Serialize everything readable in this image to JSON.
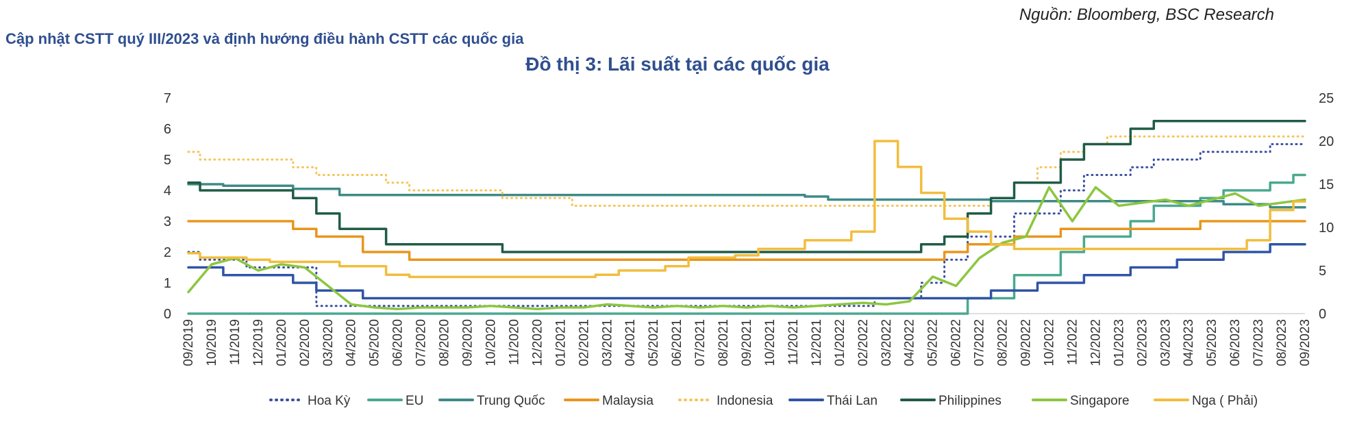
{
  "source_note": "Nguồn: Bloomberg, BSC Research",
  "section_title": "Cập nhật CSTT quý III/2023 và định hướng điều hành CSTT các quốc gia",
  "chart_title": "Đồ thị 3: Lãi suất tại các quốc gia",
  "chart_data": {
    "type": "line",
    "title": "Đồ thị 3: Lãi suất tại các quốc gia",
    "x_labels": [
      "09/2019",
      "10/2019",
      "11/2019",
      "12/2019",
      "01/2020",
      "02/2020",
      "03/2020",
      "04/2020",
      "05/2020",
      "06/2020",
      "07/2020",
      "08/2020",
      "09/2020",
      "10/2020",
      "11/2020",
      "12/2020",
      "01/2021",
      "02/2021",
      "03/2021",
      "04/2021",
      "05/2021",
      "06/2021",
      "07/2021",
      "08/2021",
      "09/2021",
      "10/2021",
      "11/2021",
      "12/2021",
      "01/2022",
      "02/2022",
      "03/2022",
      "04/2022",
      "05/2022",
      "06/2022",
      "07/2022",
      "08/2022",
      "09/2022",
      "10/2022",
      "11/2022",
      "12/2022",
      "01/2023",
      "02/2023",
      "03/2023",
      "04/2023",
      "05/2023",
      "06/2023",
      "07/2023",
      "08/2023",
      "09/2023"
    ],
    "ylim_left": [
      0,
      7
    ],
    "ylim_right": [
      0,
      25
    ],
    "y_ticks_left": [
      "0",
      "1",
      "2",
      "3",
      "4",
      "5",
      "6",
      "7"
    ],
    "y_ticks_right": [
      "0",
      "5",
      "10",
      "15",
      "20",
      "25"
    ],
    "legend_position": "bottom",
    "grid": false,
    "series": [
      {
        "name": "Hoa Kỳ",
        "color": "#3a4fa3",
        "style": "dotted",
        "axis": "left",
        "values": [
          2.0,
          1.75,
          1.75,
          1.5,
          1.5,
          1.5,
          0.25,
          0.25,
          0.25,
          0.25,
          0.25,
          0.25,
          0.25,
          0.25,
          0.25,
          0.25,
          0.25,
          0.25,
          0.25,
          0.25,
          0.25,
          0.25,
          0.25,
          0.25,
          0.25,
          0.25,
          0.25,
          0.25,
          0.25,
          0.25,
          0.5,
          0.5,
          1.0,
          1.75,
          2.5,
          2.5,
          3.25,
          3.25,
          4.0,
          4.5,
          4.5,
          4.75,
          5.0,
          5.0,
          5.25,
          5.25,
          5.25,
          5.5,
          5.5
        ]
      },
      {
        "name": "EU",
        "color": "#4aa88f",
        "style": "solid",
        "axis": "left",
        "values": [
          0,
          0,
          0,
          0,
          0,
          0,
          0,
          0,
          0,
          0,
          0,
          0,
          0,
          0,
          0,
          0,
          0,
          0,
          0,
          0,
          0,
          0,
          0,
          0,
          0,
          0,
          0,
          0,
          0,
          0,
          0,
          0,
          0,
          0,
          0.5,
          0.5,
          1.25,
          1.25,
          2.0,
          2.5,
          2.5,
          3.0,
          3.5,
          3.5,
          3.75,
          4.0,
          4.0,
          4.25,
          4.5
        ]
      },
      {
        "name": "Trung Quốc",
        "color": "#3e8a86",
        "style": "solid",
        "axis": "left",
        "values": [
          4.2,
          4.2,
          4.15,
          4.15,
          4.15,
          4.05,
          4.05,
          3.85,
          3.85,
          3.85,
          3.85,
          3.85,
          3.85,
          3.85,
          3.85,
          3.85,
          3.85,
          3.85,
          3.85,
          3.85,
          3.85,
          3.85,
          3.85,
          3.85,
          3.85,
          3.85,
          3.85,
          3.8,
          3.7,
          3.7,
          3.7,
          3.7,
          3.7,
          3.7,
          3.7,
          3.65,
          3.65,
          3.65,
          3.65,
          3.65,
          3.65,
          3.65,
          3.65,
          3.65,
          3.65,
          3.55,
          3.55,
          3.45,
          3.45
        ]
      },
      {
        "name": "Malaysia",
        "color": "#e8951d",
        "style": "solid",
        "axis": "left",
        "values": [
          3.0,
          3.0,
          3.0,
          3.0,
          3.0,
          2.75,
          2.5,
          2.5,
          2.0,
          2.0,
          1.75,
          1.75,
          1.75,
          1.75,
          1.75,
          1.75,
          1.75,
          1.75,
          1.75,
          1.75,
          1.75,
          1.75,
          1.75,
          1.75,
          1.75,
          1.75,
          1.75,
          1.75,
          1.75,
          1.75,
          1.75,
          1.75,
          1.75,
          2.0,
          2.25,
          2.25,
          2.5,
          2.5,
          2.75,
          2.75,
          2.75,
          2.75,
          2.75,
          2.75,
          3.0,
          3.0,
          3.0,
          3.0,
          3.0
        ]
      },
      {
        "name": "Indonesia",
        "color": "#f5c55a",
        "style": "dotted",
        "axis": "left",
        "values": [
          5.25,
          5.0,
          5.0,
          5.0,
          5.0,
          4.75,
          4.5,
          4.5,
          4.5,
          4.25,
          4.0,
          4.0,
          4.0,
          4.0,
          3.75,
          3.75,
          3.75,
          3.5,
          3.5,
          3.5,
          3.5,
          3.5,
          3.5,
          3.5,
          3.5,
          3.5,
          3.5,
          3.5,
          3.5,
          3.5,
          3.5,
          3.5,
          3.5,
          3.5,
          3.5,
          3.75,
          4.25,
          4.75,
          5.25,
          5.5,
          5.75,
          5.75,
          5.75,
          5.75,
          5.75,
          5.75,
          5.75,
          5.75,
          5.75
        ]
      },
      {
        "name": "Thái Lan",
        "color": "#2f54a6",
        "style": "solid",
        "axis": "left",
        "values": [
          1.5,
          1.5,
          1.25,
          1.25,
          1.25,
          1.0,
          0.75,
          0.75,
          0.5,
          0.5,
          0.5,
          0.5,
          0.5,
          0.5,
          0.5,
          0.5,
          0.5,
          0.5,
          0.5,
          0.5,
          0.5,
          0.5,
          0.5,
          0.5,
          0.5,
          0.5,
          0.5,
          0.5,
          0.5,
          0.5,
          0.5,
          0.5,
          0.5,
          0.5,
          0.5,
          0.75,
          0.75,
          1.0,
          1.0,
          1.25,
          1.25,
          1.5,
          1.5,
          1.75,
          1.75,
          2.0,
          2.0,
          2.25,
          2.25
        ]
      },
      {
        "name": "Philippines",
        "color": "#1f5c45",
        "style": "solid",
        "axis": "left",
        "values": [
          4.25,
          4.0,
          4.0,
          4.0,
          4.0,
          3.75,
          3.25,
          2.75,
          2.75,
          2.25,
          2.25,
          2.25,
          2.25,
          2.25,
          2.0,
          2.0,
          2.0,
          2.0,
          2.0,
          2.0,
          2.0,
          2.0,
          2.0,
          2.0,
          2.0,
          2.0,
          2.0,
          2.0,
          2.0,
          2.0,
          2.0,
          2.0,
          2.25,
          2.5,
          3.25,
          3.75,
          4.25,
          4.25,
          5.0,
          5.5,
          5.5,
          6.0,
          6.25,
          6.25,
          6.25,
          6.25,
          6.25,
          6.25,
          6.25
        ]
      },
      {
        "name": "Singapore",
        "color": "#8cc63f",
        "style": "solid",
        "axis": "left",
        "values": [
          0.7,
          1.6,
          1.8,
          1.4,
          1.6,
          1.5,
          0.9,
          0.3,
          0.2,
          0.15,
          0.2,
          0.2,
          0.2,
          0.25,
          0.2,
          0.15,
          0.2,
          0.2,
          0.3,
          0.25,
          0.2,
          0.25,
          0.2,
          0.25,
          0.2,
          0.25,
          0.2,
          0.25,
          0.3,
          0.35,
          0.3,
          0.4,
          1.2,
          0.9,
          1.8,
          2.3,
          2.5,
          4.1,
          3.0,
          4.1,
          3.5,
          3.6,
          3.7,
          3.5,
          3.7,
          3.9,
          3.5,
          3.6,
          3.7
        ]
      },
      {
        "name": "Nga ( Phải)",
        "color": "#f2bd3c",
        "style": "solid",
        "axis": "right",
        "values": [
          7.0,
          6.5,
          6.5,
          6.25,
          6.0,
          6.0,
          6.0,
          5.5,
          5.5,
          4.5,
          4.25,
          4.25,
          4.25,
          4.25,
          4.25,
          4.25,
          4.25,
          4.25,
          4.5,
          5.0,
          5.0,
          5.5,
          6.5,
          6.5,
          6.75,
          7.5,
          7.5,
          8.5,
          8.5,
          9.5,
          20.0,
          17.0,
          14.0,
          11.0,
          9.5,
          8.0,
          7.5,
          7.5,
          7.5,
          7.5,
          7.5,
          7.5,
          7.5,
          7.5,
          7.5,
          7.5,
          8.5,
          12.0,
          13.0
        ]
      }
    ]
  }
}
